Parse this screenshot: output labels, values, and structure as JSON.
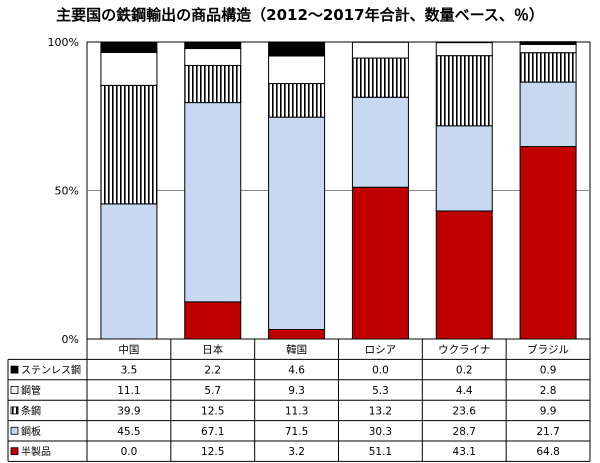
{
  "chart_data": {
    "type": "bar",
    "stacked": "percent",
    "title": "主要国の鉄鋼輸出の商品構造（2012～2017年合計、数量ベース、％）",
    "categories": [
      "中国",
      "日本",
      "韓国",
      "ロシア",
      "ウクライナ",
      "ブラジル"
    ],
    "yticks": [
      "0%",
      "50%",
      "100%"
    ],
    "ylim": [
      0,
      100
    ],
    "grid": true,
    "series": [
      {
        "name": "半製品",
        "values": [
          0.0,
          12.5,
          3.2,
          51.1,
          43.1,
          64.8
        ],
        "fill": "#c00000",
        "pattern": "solid"
      },
      {
        "name": "鋼板",
        "values": [
          45.5,
          67.1,
          71.5,
          30.3,
          28.7,
          21.7
        ],
        "fill": "#c6d9f1",
        "pattern": "solid"
      },
      {
        "name": "条鋼",
        "values": [
          39.9,
          12.5,
          11.3,
          13.2,
          23.6,
          9.9
        ],
        "fill": "#ffffff",
        "pattern": "vstripes"
      },
      {
        "name": "鋼管",
        "values": [
          11.1,
          5.7,
          9.3,
          5.3,
          4.4,
          2.8
        ],
        "fill": "#ffffff",
        "pattern": "solid"
      },
      {
        "name": "ステンレス鋼",
        "values": [
          3.5,
          2.2,
          4.6,
          0.0,
          0.2,
          0.9
        ],
        "fill": "#000000",
        "pattern": "solid"
      }
    ],
    "table_rows": [
      {
        "name": "ステンレス鋼",
        "values": [
          "3.5",
          "2.2",
          "4.6",
          "0.0",
          "0.2",
          "0.9"
        ]
      },
      {
        "name": "鋼管",
        "values": [
          "11.1",
          "5.7",
          "9.3",
          "5.3",
          "4.4",
          "2.8"
        ]
      },
      {
        "name": "条鋼",
        "values": [
          "39.9",
          "12.5",
          "11.3",
          "13.2",
          "23.6",
          "9.9"
        ]
      },
      {
        "name": "鋼板",
        "values": [
          "45.5",
          "67.1",
          "71.5",
          "30.3",
          "28.7",
          "21.7"
        ]
      },
      {
        "name": "半製品",
        "values": [
          "0.0",
          "12.5",
          "3.2",
          "51.1",
          "43.1",
          "64.8"
        ]
      }
    ]
  }
}
